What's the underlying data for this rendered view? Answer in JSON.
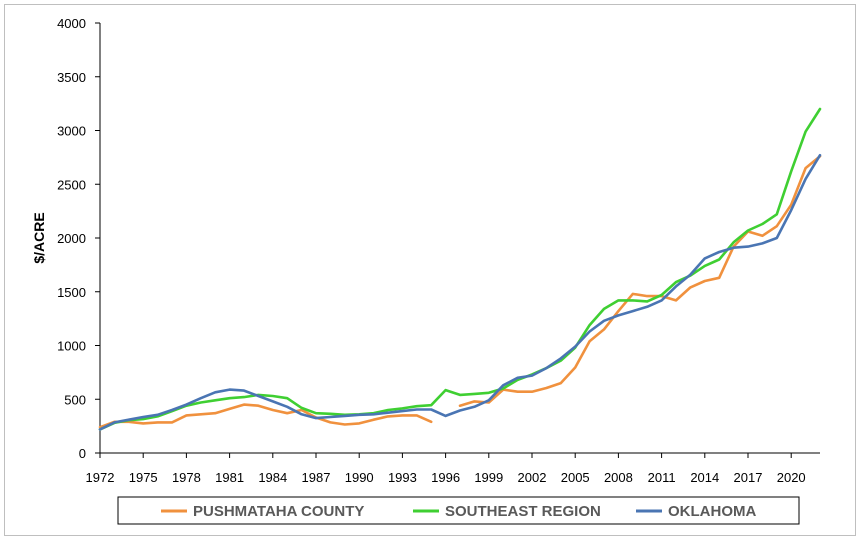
{
  "chart_data": {
    "type": "line",
    "title": "",
    "xlabel": "",
    "ylabel": "$/ACRE",
    "ylim": [
      0,
      4000
    ],
    "yticks": [
      0,
      500,
      1000,
      1500,
      2000,
      2500,
      3000,
      3500,
      4000
    ],
    "xlim": [
      1972,
      2022
    ],
    "xticks": [
      1972,
      1975,
      1978,
      1981,
      1984,
      1987,
      1990,
      1993,
      1996,
      1999,
      2002,
      2005,
      2008,
      2011,
      2014,
      2017,
      2020
    ],
    "grid": false,
    "legend_position": "bottom",
    "series": [
      {
        "name": "PUSHMATAHA COUNTY",
        "color": "#f0913e",
        "x": [
          1972,
          1973,
          1974,
          1975,
          1976,
          1977,
          1978,
          1979,
          1980,
          1981,
          1982,
          1983,
          1984,
          1985,
          1986,
          1987,
          1988,
          1989,
          1990,
          1991,
          1992,
          1993,
          1994,
          1995,
          null,
          1997,
          1998,
          1999,
          2000,
          2001,
          2002,
          2003,
          2004,
          2005,
          2006,
          2007,
          2008,
          2009,
          2010,
          2011,
          2012,
          2013,
          2014,
          2015,
          2016,
          2017,
          2018,
          2019,
          2020,
          2021,
          2022
        ],
        "values": [
          240,
          290,
          290,
          275,
          285,
          285,
          350,
          360,
          370,
          410,
          450,
          440,
          400,
          370,
          400,
          330,
          285,
          265,
          275,
          310,
          340,
          350,
          350,
          290,
          null,
          440,
          480,
          470,
          590,
          570,
          570,
          605,
          650,
          795,
          1040,
          1150,
          1320,
          1480,
          1460,
          1460,
          1420,
          1540,
          1600,
          1630,
          1920,
          2060,
          2020,
          2110,
          2310,
          2650,
          2760
        ]
      },
      {
        "name": "SOUTHEAST REGION",
        "color": "#3fcf32",
        "x": [
          1972,
          1973,
          1974,
          1975,
          1976,
          1977,
          1978,
          1979,
          1980,
          1981,
          1982,
          1983,
          1984,
          1985,
          1986,
          1987,
          1988,
          1989,
          1990,
          1991,
          1992,
          1993,
          1994,
          1995,
          1996,
          1997,
          1998,
          1999,
          2000,
          2001,
          2002,
          2003,
          2004,
          2005,
          2006,
          2007,
          2008,
          2009,
          2010,
          2011,
          2012,
          2013,
          2014,
          2015,
          2016,
          2017,
          2018,
          2019,
          2020,
          2021,
          2022
        ],
        "values": [
          220,
          280,
          305,
          315,
          340,
          390,
          440,
          470,
          490,
          510,
          520,
          540,
          530,
          510,
          420,
          370,
          365,
          355,
          360,
          370,
          400,
          415,
          435,
          445,
          585,
          540,
          550,
          560,
          600,
          680,
          730,
          790,
          860,
          980,
          1190,
          1340,
          1420,
          1420,
          1410,
          1470,
          1590,
          1650,
          1740,
          1800,
          1960,
          2070,
          2130,
          2220,
          2620,
          2990,
          3200
        ]
      },
      {
        "name": "OKLAHOMA",
        "color": "#4a75b3",
        "x": [
          1972,
          1973,
          1974,
          1975,
          1976,
          1977,
          1978,
          1979,
          1980,
          1981,
          1982,
          1983,
          1984,
          1985,
          1986,
          1987,
          1988,
          1989,
          1990,
          1991,
          1992,
          1993,
          1994,
          1995,
          1996,
          1997,
          1998,
          1999,
          2000,
          2001,
          2002,
          2003,
          2004,
          2005,
          2006,
          2007,
          2008,
          2009,
          2010,
          2011,
          2012,
          2013,
          2014,
          2015,
          2016,
          2017,
          2018,
          2019,
          2020,
          2021,
          2022
        ],
        "values": [
          220,
          285,
          310,
          335,
          355,
          400,
          450,
          510,
          565,
          590,
          580,
          530,
          480,
          430,
          360,
          325,
          335,
          345,
          355,
          360,
          375,
          390,
          405,
          405,
          345,
          395,
          430,
          490,
          630,
          700,
          720,
          790,
          880,
          990,
          1130,
          1230,
          1280,
          1320,
          1360,
          1420,
          1550,
          1660,
          1810,
          1870,
          1910,
          1920,
          1950,
          2000,
          2260,
          2550,
          2770
        ]
      }
    ]
  }
}
